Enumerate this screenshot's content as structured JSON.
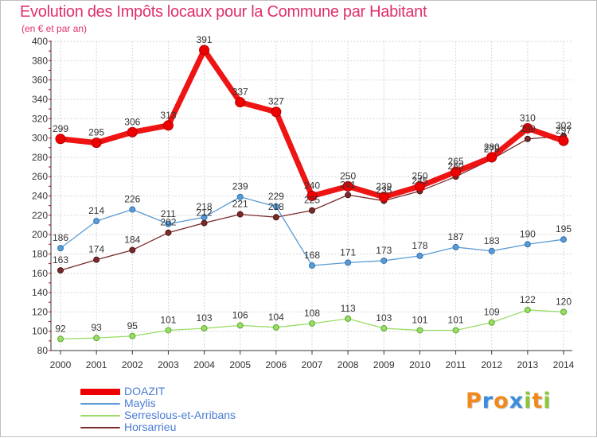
{
  "title": "Evolution des Impôts locaux pour la Commune par Habitant",
  "subtitle": "(en € et par an)",
  "logo": {
    "chars": [
      "P",
      "r",
      "o",
      "x",
      "i",
      "t",
      "i"
    ],
    "colors": [
      "#f08a1c",
      "#3a8ee0",
      "#f08a1c",
      "#3a8ee0",
      "#8cc63f",
      "#f08a1c",
      "#8cc63f"
    ]
  },
  "chart_data": {
    "type": "line",
    "x": [
      "2000",
      "2001",
      "2002",
      "2003",
      "2004",
      "2005",
      "2006",
      "2007",
      "2008",
      "2009",
      "2010",
      "2011",
      "2012",
      "2013",
      "2014"
    ],
    "ylim": [
      80,
      400
    ],
    "yticks": [
      80,
      100,
      120,
      140,
      160,
      180,
      200,
      220,
      240,
      260,
      280,
      300,
      320,
      340,
      360,
      380,
      400
    ],
    "grid": true,
    "legend_position": "bottom-left",
    "series": [
      {
        "name": "Serreslous-et-Arribans",
        "color": "#99dd66",
        "values": [
          92,
          93,
          95,
          101,
          103,
          106,
          104,
          108,
          113,
          103,
          101,
          101,
          109,
          122,
          120
        ],
        "labels": [
          "92",
          "93",
          "95",
          "101",
          "103",
          "106",
          "104",
          "108",
          "113",
          "103",
          "101",
          "101",
          "109",
          "122",
          "120"
        ]
      },
      {
        "name": "Horsarrieu",
        "color": "#7a2a2a",
        "values": [
          163,
          174,
          184,
          202,
          212,
          221,
          218,
          225,
          241,
          235,
          245,
          260,
          278,
          299,
          302
        ],
        "labels": [
          "163",
          "174",
          "184",
          "202",
          "212",
          "221",
          "218",
          "225",
          "241",
          "235",
          "245",
          "260",
          "278",
          "299",
          "302"
        ]
      },
      {
        "name": "Maylis",
        "color": "#5b9bd5",
        "values": [
          186,
          214,
          226,
          211,
          218,
          239,
          229,
          168,
          171,
          173,
          178,
          187,
          183,
          190,
          195
        ],
        "labels": [
          "186",
          "214",
          "226",
          "211",
          "218",
          "239",
          "229",
          "168",
          "171",
          "173",
          "178",
          "187",
          "183",
          "190",
          "195"
        ]
      },
      {
        "name": "DOAZIT",
        "color": "#ee0000",
        "values": [
          299,
          295,
          306,
          313,
          391,
          337,
          327,
          240,
          250,
          239,
          250,
          265,
          280,
          310,
          297
        ],
        "labels": [
          "299",
          "295",
          "306",
          "313",
          "391",
          "337",
          "327",
          "240",
          "250",
          "239",
          "250",
          "265",
          "280",
          "310",
          "297"
        ]
      }
    ],
    "legend_order": [
      "DOAZIT",
      "Maylis",
      "Serreslous-et-Arribans",
      "Horsarrieu"
    ]
  }
}
